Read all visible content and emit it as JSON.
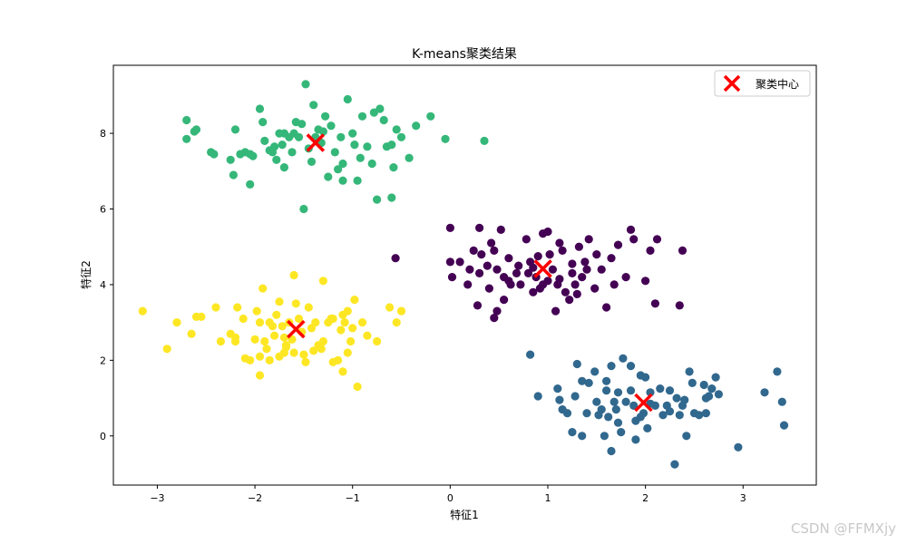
{
  "chart_data": {
    "type": "scatter",
    "title": "K-means聚类结果",
    "xlabel": "特征1",
    "ylabel": "特征2",
    "xlim": [
      -3.45,
      3.75
    ],
    "ylim": [
      -1.3,
      9.8
    ],
    "xticks": [
      -3,
      -2,
      -1,
      0,
      1,
      2,
      3
    ],
    "yticks": [
      0,
      2,
      4,
      6,
      8
    ],
    "grid": false,
    "legend": {
      "placement": "top-right",
      "entries": [
        "聚类中心"
      ]
    },
    "series": [
      {
        "color": "#440154",
        "points": [
          [
            0.0,
            5.5
          ],
          [
            0.0,
            4.6
          ],
          [
            0.02,
            4.2
          ],
          [
            0.1,
            4.6
          ],
          [
            0.18,
            4.0
          ],
          [
            0.24,
            4.9
          ],
          [
            0.3,
            5.5
          ],
          [
            0.32,
            4.8
          ],
          [
            0.38,
            4.5
          ],
          [
            0.42,
            5.1
          ],
          [
            0.45,
            4.9
          ],
          [
            0.48,
            4.4
          ],
          [
            0.52,
            5.45
          ],
          [
            0.55,
            4.2
          ],
          [
            0.6,
            4.7
          ],
          [
            0.62,
            4.0
          ],
          [
            0.68,
            4.3
          ],
          [
            0.72,
            4.0
          ],
          [
            0.78,
            5.2
          ],
          [
            0.82,
            4.6
          ],
          [
            0.85,
            3.8
          ],
          [
            0.88,
            4.2
          ],
          [
            0.9,
            4.75
          ],
          [
            0.95,
            5.35
          ],
          [
            1.0,
            5.4
          ],
          [
            1.02,
            4.8
          ],
          [
            1.05,
            4.4
          ],
          [
            1.1,
            4.0
          ],
          [
            1.12,
            5.1
          ],
          [
            1.18,
            3.8
          ],
          [
            1.22,
            3.6
          ],
          [
            1.25,
            4.3
          ],
          [
            1.28,
            4.0
          ],
          [
            1.32,
            5.0
          ],
          [
            1.38,
            4.6
          ],
          [
            1.4,
            4.4
          ],
          [
            1.48,
            3.9
          ],
          [
            1.55,
            4.4
          ],
          [
            1.6,
            3.4
          ],
          [
            1.68,
            4.0
          ],
          [
            1.72,
            5.05
          ],
          [
            1.8,
            4.2
          ],
          [
            1.85,
            5.45
          ],
          [
            1.88,
            5.2
          ],
          [
            2.0,
            4.1
          ],
          [
            2.05,
            4.9
          ],
          [
            2.1,
            3.5
          ],
          [
            2.12,
            5.2
          ],
          [
            2.38,
            4.9
          ],
          [
            2.35,
            3.45
          ],
          [
            1.0,
            4.1
          ],
          [
            0.28,
            3.45
          ],
          [
            0.45,
            3.12
          ],
          [
            0.48,
            3.3
          ],
          [
            -0.56,
            4.7
          ],
          [
            0.92,
            3.9
          ],
          [
            1.3,
            3.75
          ],
          [
            0.85,
            4.45
          ],
          [
            0.6,
            4.1
          ],
          [
            0.7,
            4.5
          ],
          [
            1.12,
            4.15
          ],
          [
            0.4,
            3.9
          ],
          [
            0.95,
            4.0
          ],
          [
            1.42,
            5.2
          ],
          [
            0.2,
            4.4
          ],
          [
            1.5,
            4.8
          ],
          [
            1.25,
            4.55
          ],
          [
            0.8,
            4.3
          ],
          [
            1.65,
            4.7
          ],
          [
            1.15,
            4.9
          ],
          [
            0.55,
            3.6
          ],
          [
            1.08,
            3.3
          ],
          [
            0.3,
            4.3
          ],
          [
            1.35,
            4.2
          ]
        ]
      },
      {
        "color": "#31688e",
        "points": [
          [
            0.82,
            2.15
          ],
          [
            0.9,
            1.05
          ],
          [
            1.1,
            1.25
          ],
          [
            1.12,
            0.95
          ],
          [
            1.2,
            0.6
          ],
          [
            1.25,
            0.1
          ],
          [
            1.28,
            1.05
          ],
          [
            1.3,
            1.9
          ],
          [
            1.35,
            1.45
          ],
          [
            1.4,
            0.6
          ],
          [
            1.42,
            1.4
          ],
          [
            1.48,
            1.7
          ],
          [
            1.5,
            0.9
          ],
          [
            1.55,
            0.7
          ],
          [
            1.58,
            0.0
          ],
          [
            1.6,
            1.2
          ],
          [
            1.62,
            0.5
          ],
          [
            1.65,
            1.85
          ],
          [
            1.68,
            0.9
          ],
          [
            1.7,
            0.7
          ],
          [
            1.72,
            1.15
          ],
          [
            1.75,
            0.1
          ],
          [
            1.8,
            0.9
          ],
          [
            1.85,
            1.2
          ],
          [
            1.88,
            0.8
          ],
          [
            1.9,
            0.4
          ],
          [
            1.95,
            1.6
          ],
          [
            1.98,
            0.6
          ],
          [
            2.0,
            1.55
          ],
          [
            2.02,
            0.2
          ],
          [
            2.05,
            1.15
          ],
          [
            2.1,
            0.8
          ],
          [
            2.15,
            1.25
          ],
          [
            2.18,
            0.55
          ],
          [
            2.22,
            0.8
          ],
          [
            2.25,
            1.2
          ],
          [
            2.3,
            -0.75
          ],
          [
            2.32,
            1.0
          ],
          [
            2.35,
            0.55
          ],
          [
            2.38,
            0.8
          ],
          [
            2.42,
            0.0
          ],
          [
            2.45,
            1.7
          ],
          [
            2.48,
            1.4
          ],
          [
            2.5,
            0.6
          ],
          [
            2.55,
            0.55
          ],
          [
            2.6,
            1.35
          ],
          [
            2.62,
            1.0
          ],
          [
            2.65,
            1.05
          ],
          [
            2.72,
            1.55
          ],
          [
            2.75,
            1.1
          ],
          [
            2.95,
            -0.3
          ],
          [
            3.22,
            1.15
          ],
          [
            3.35,
            1.7
          ],
          [
            3.4,
            0.9
          ],
          [
            3.42,
            0.28
          ],
          [
            1.65,
            -0.4
          ],
          [
            1.9,
            -0.1
          ],
          [
            1.85,
            1.85
          ],
          [
            1.77,
            2.05
          ],
          [
            2.25,
            0.65
          ],
          [
            1.72,
            0.35
          ],
          [
            2.62,
            0.6
          ],
          [
            1.6,
            1.45
          ],
          [
            1.35,
            0.0
          ],
          [
            2.05,
            0.85
          ],
          [
            1.95,
            0.5
          ],
          [
            2.4,
            0.95
          ],
          [
            1.52,
            0.55
          ],
          [
            2.68,
            1.25
          ],
          [
            1.15,
            0.7
          ]
        ]
      },
      {
        "color": "#35b779",
        "points": [
          [
            -2.7,
            8.35
          ],
          [
            -2.7,
            7.85
          ],
          [
            -2.62,
            8.05
          ],
          [
            -2.6,
            8.1
          ],
          [
            -2.45,
            7.5
          ],
          [
            -2.42,
            7.45
          ],
          [
            -2.25,
            7.3
          ],
          [
            -2.2,
            8.1
          ],
          [
            -2.22,
            6.9
          ],
          [
            -2.1,
            7.5
          ],
          [
            -2.05,
            7.45
          ],
          [
            -2.05,
            6.65
          ],
          [
            -2.02,
            7.4
          ],
          [
            -1.95,
            8.65
          ],
          [
            -1.92,
            8.3
          ],
          [
            -1.9,
            7.8
          ],
          [
            -1.82,
            7.5
          ],
          [
            -1.8,
            7.65
          ],
          [
            -1.78,
            7.3
          ],
          [
            -1.75,
            8.0
          ],
          [
            -1.72,
            7.7
          ],
          [
            -1.7,
            7.1
          ],
          [
            -1.65,
            7.9
          ],
          [
            -1.6,
            8.0
          ],
          [
            -1.58,
            8.3
          ],
          [
            -1.55,
            7.9
          ],
          [
            -1.52,
            8.25
          ],
          [
            -1.48,
            9.3
          ],
          [
            -1.45,
            7.6
          ],
          [
            -1.42,
            7.25
          ],
          [
            -1.38,
            7.9
          ],
          [
            -1.35,
            8.1
          ],
          [
            -1.32,
            7.75
          ],
          [
            -1.28,
            8.45
          ],
          [
            -1.25,
            6.85
          ],
          [
            -1.22,
            8.2
          ],
          [
            -1.18,
            7.5
          ],
          [
            -1.15,
            7.05
          ],
          [
            -1.12,
            7.9
          ],
          [
            -1.1,
            7.2
          ],
          [
            -1.05,
            8.9
          ],
          [
            -1.0,
            8.0
          ],
          [
            -0.98,
            7.7
          ],
          [
            -0.95,
            6.75
          ],
          [
            -0.9,
            8.45
          ],
          [
            -0.85,
            7.65
          ],
          [
            -0.8,
            7.2
          ],
          [
            -0.78,
            8.55
          ],
          [
            -0.72,
            8.65
          ],
          [
            -0.68,
            8.35
          ],
          [
            -0.65,
            7.65
          ],
          [
            -0.6,
            7.7
          ],
          [
            -0.58,
            7.1
          ],
          [
            -0.55,
            8.1
          ],
          [
            -0.5,
            7.9
          ],
          [
            -0.42,
            7.35
          ],
          [
            -0.35,
            8.2
          ],
          [
            -0.2,
            8.45
          ],
          [
            -0.05,
            7.85
          ],
          [
            0.35,
            7.8
          ],
          [
            -1.5,
            6.0
          ],
          [
            -0.6,
            6.3
          ],
          [
            -0.75,
            6.25
          ],
          [
            -1.4,
            8.75
          ],
          [
            -2.15,
            7.45
          ],
          [
            -1.85,
            7.55
          ],
          [
            -1.62,
            7.5
          ],
          [
            -1.1,
            6.75
          ],
          [
            -0.92,
            7.35
          ],
          [
            -1.7,
            8.0
          ],
          [
            -1.3,
            8.05
          ]
        ]
      },
      {
        "color": "#fde725",
        "points": [
          [
            -3.15,
            3.3
          ],
          [
            -2.9,
            2.3
          ],
          [
            -2.8,
            3.0
          ],
          [
            -2.65,
            2.7
          ],
          [
            -2.6,
            3.15
          ],
          [
            -2.55,
            3.15
          ],
          [
            -2.4,
            3.4
          ],
          [
            -2.25,
            2.7
          ],
          [
            -2.2,
            2.5
          ],
          [
            -2.18,
            3.4
          ],
          [
            -2.12,
            3.1
          ],
          [
            -2.1,
            2.05
          ],
          [
            -2.05,
            2.0
          ],
          [
            -2.0,
            2.55
          ],
          [
            -1.98,
            3.3
          ],
          [
            -1.95,
            2.1
          ],
          [
            -1.92,
            3.9
          ],
          [
            -1.9,
            2.5
          ],
          [
            -1.88,
            2.3
          ],
          [
            -1.85,
            3.0
          ],
          [
            -1.82,
            2.9
          ],
          [
            -1.8,
            2.65
          ],
          [
            -1.78,
            3.2
          ],
          [
            -1.75,
            3.55
          ],
          [
            -1.72,
            2.9
          ],
          [
            -1.7,
            2.2
          ],
          [
            -1.68,
            2.4
          ],
          [
            -1.65,
            3.0
          ],
          [
            -1.62,
            2.55
          ],
          [
            -1.6,
            4.25
          ],
          [
            -1.58,
            3.5
          ],
          [
            -1.55,
            3.1
          ],
          [
            -1.52,
            2.75
          ],
          [
            -1.5,
            2.15
          ],
          [
            -1.48,
            1.95
          ],
          [
            -1.45,
            3.4
          ],
          [
            -1.42,
            2.85
          ],
          [
            -1.38,
            3.0
          ],
          [
            -1.35,
            2.4
          ],
          [
            -1.32,
            2.3
          ],
          [
            -1.3,
            4.1
          ],
          [
            -1.25,
            3.0
          ],
          [
            -1.22,
            3.1
          ],
          [
            -1.2,
            3.1
          ],
          [
            -1.15,
            2.0
          ],
          [
            -1.12,
            2.8
          ],
          [
            -1.1,
            3.2
          ],
          [
            -1.08,
            3.0
          ],
          [
            -1.05,
            2.2
          ],
          [
            -1.02,
            2.5
          ],
          [
            -0.98,
            3.6
          ],
          [
            -0.95,
            1.3
          ],
          [
            -0.9,
            3.0
          ],
          [
            -0.85,
            2.65
          ],
          [
            -0.75,
            2.5
          ],
          [
            -0.62,
            3.4
          ],
          [
            -0.55,
            3.0
          ],
          [
            -0.5,
            3.3
          ],
          [
            -1.95,
            1.6
          ],
          [
            -1.1,
            1.7
          ],
          [
            -1.85,
            2.0
          ],
          [
            -2.35,
            2.5
          ],
          [
            -1.6,
            2.2
          ],
          [
            -1.3,
            2.5
          ],
          [
            -1.95,
            3.0
          ],
          [
            -1.7,
            2.6
          ],
          [
            -2.2,
            2.6
          ],
          [
            -1.0,
            2.85
          ],
          [
            -1.75,
            2.1
          ],
          [
            -1.4,
            2.25
          ],
          [
            -1.05,
            3.3
          ],
          [
            -1.68,
            2.35
          ],
          [
            -1.2,
            1.95
          ]
        ]
      }
    ],
    "centers": {
      "name": "聚类中心",
      "color": "#ff0000",
      "points": [
        [
          0.95,
          4.42
        ],
        [
          1.98,
          0.88
        ],
        [
          -1.38,
          7.75
        ],
        [
          -1.58,
          2.82
        ]
      ]
    }
  },
  "watermark": "CSDN @FFMXjy"
}
